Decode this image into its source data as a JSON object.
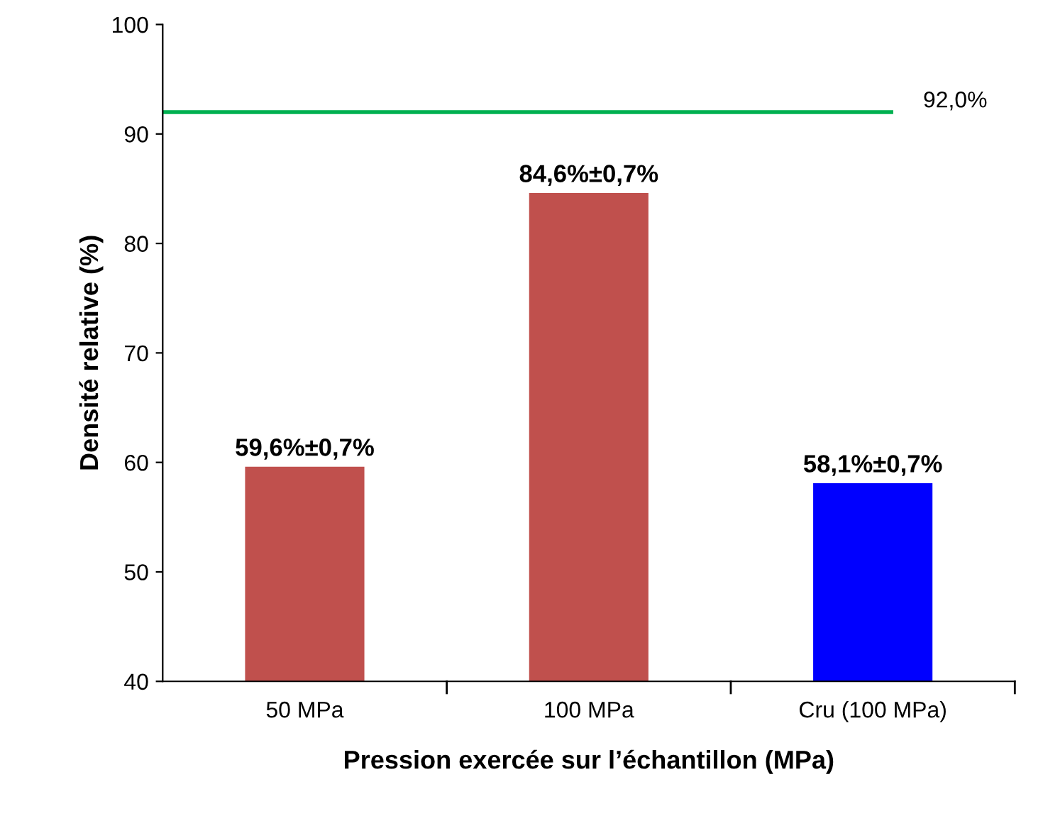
{
  "chart_data": {
    "type": "bar",
    "xlabel": "Pression exercée sur l’échantillon (MPa)",
    "ylabel": "Densité relative (%)",
    "categories": [
      "50 MPa",
      "100 MPa",
      "Cru (100 MPa)"
    ],
    "values": [
      59.6,
      84.6,
      58.1
    ],
    "colors": [
      "#c0504d",
      "#c0504d",
      "#0000ff"
    ],
    "value_labels": [
      "59,6%±0,7%",
      "84,6%±0,7%",
      "58,1%±0,7%"
    ],
    "ylim": [
      40,
      100
    ],
    "yticks": [
      40,
      50,
      60,
      70,
      80,
      90,
      100
    ],
    "grid": false,
    "legend": false,
    "ref_lines": [
      {
        "axis": "y",
        "value": 92,
        "label": "92,0%",
        "color": "#00b050",
        "line_style": "solid"
      }
    ]
  }
}
